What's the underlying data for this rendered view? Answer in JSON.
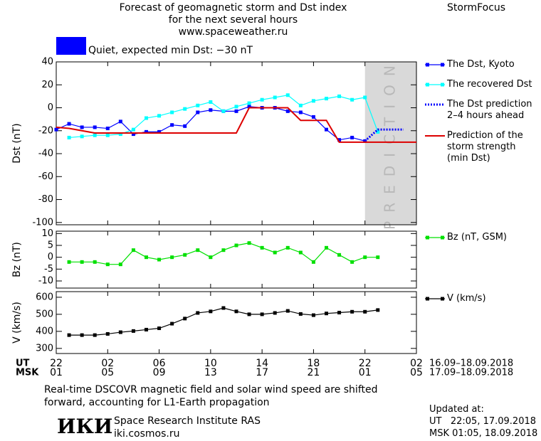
{
  "header": {
    "title": "Forecast of geomagnetic storm and Dst index\nfor the next several hours\nwww.spaceweather.ru",
    "brand": "StormFocus",
    "status_color": "#0000ff",
    "status_text": "Quiet, expected min Dst: −30 nT"
  },
  "chart_data": [
    {
      "type": "line",
      "ylabel": "Dst (nT)",
      "xlim": [
        0,
        28
      ],
      "xticks": [
        0,
        4,
        8,
        12,
        16,
        20,
        24,
        28
      ],
      "ylim": [
        -102,
        40
      ],
      "yticks": [
        40,
        20,
        0,
        -20,
        -40,
        -60,
        -80,
        -100
      ],
      "prediction_band": {
        "label": "PREDICTION",
        "color": "#d9d9d9",
        "xlim": [
          24,
          28
        ]
      },
      "series": [
        {
          "name": "The Dst, Kyoto",
          "color": "#0000ff",
          "marker": true,
          "dash": false,
          "x": [
            0,
            1,
            2,
            3,
            4,
            5,
            6,
            7,
            8,
            9,
            10,
            11,
            12,
            13,
            14,
            15,
            16,
            17,
            18,
            19,
            20,
            21,
            22,
            23,
            24
          ],
          "values": [
            -19,
            -14,
            -17,
            -17,
            -18,
            -12,
            -23,
            -21,
            -21,
            -15,
            -16,
            -4,
            -2,
            -3,
            -3,
            1,
            0,
            0,
            -3,
            -4,
            -8,
            -19,
            -28,
            -26,
            -29
          ]
        },
        {
          "name": "The recovered Dst",
          "color": "#00ffff",
          "marker": true,
          "dash": false,
          "x": [
            1,
            2,
            3,
            4,
            5,
            6,
            7,
            8,
            9,
            10,
            11,
            12,
            13,
            14,
            15,
            16,
            17,
            18,
            19,
            20,
            21,
            22,
            23,
            24,
            25
          ],
          "values": [
            -26,
            -25,
            -24,
            -24,
            -23,
            -19,
            -9,
            -7,
            -4,
            -1,
            2,
            5,
            -3,
            1,
            4,
            7,
            9,
            11,
            2,
            6,
            8,
            10,
            7,
            9,
            -21
          ]
        },
        {
          "name": "The Dst prediction\n2–4 hours ahead",
          "color": "#0000ff",
          "marker": false,
          "dash": true,
          "x": [
            24,
            25,
            26,
            27
          ],
          "values": [
            -29,
            -19,
            -19,
            -19
          ]
        },
        {
          "name": "Prediction of the\nstorm strength\n(min Dst)",
          "color": "#dd0000",
          "marker": false,
          "dash": false,
          "x": [
            0,
            1,
            3,
            14,
            15,
            18,
            19,
            21,
            22,
            28
          ],
          "values": [
            -17,
            -18,
            -22,
            -22,
            0,
            0,
            -11,
            -11,
            -30,
            -30
          ]
        }
      ]
    },
    {
      "type": "line",
      "ylabel": "Bz (nT)",
      "xlim": [
        0,
        28
      ],
      "xticks": [
        0,
        4,
        8,
        12,
        16,
        20,
        24,
        28
      ],
      "ylim": [
        -13,
        11
      ],
      "yticks": [
        10,
        5,
        0,
        -5,
        -10
      ],
      "series": [
        {
          "name": "Bz (nT, GSM)",
          "color": "#00e000",
          "marker": true,
          "dash": false,
          "x": [
            1,
            2,
            3,
            4,
            5,
            6,
            7,
            8,
            9,
            10,
            11,
            12,
            13,
            14,
            15,
            16,
            17,
            18,
            19,
            20,
            21,
            22,
            23,
            24,
            25
          ],
          "values": [
            -2,
            -2,
            -2,
            -3,
            -3,
            3,
            0,
            -1,
            0,
            1,
            3,
            0,
            3,
            5,
            6,
            4,
            2,
            4,
            2,
            -2,
            4,
            1,
            -2,
            0,
            0
          ]
        }
      ]
    },
    {
      "type": "line",
      "ylabel": "V (km/s)",
      "xlim": [
        0,
        28
      ],
      "xticks": [
        {
          "value": 0,
          "label": "22"
        },
        {
          "value": 4,
          "label": "02"
        },
        {
          "value": 8,
          "label": "06"
        },
        {
          "value": 12,
          "label": "10"
        },
        {
          "value": 16,
          "label": "14"
        },
        {
          "value": 20,
          "label": "18"
        },
        {
          "value": 24,
          "label": "22"
        },
        {
          "value": 28,
          "label": "02"
        }
      ],
      "x2ticks": [
        {
          "value": 0,
          "label": "01"
        },
        {
          "value": 4,
          "label": "05"
        },
        {
          "value": 8,
          "label": "09"
        },
        {
          "value": 12,
          "label": "13"
        },
        {
          "value": 16,
          "label": "17"
        },
        {
          "value": 20,
          "label": "21"
        },
        {
          "value": 24,
          "label": "01"
        },
        {
          "value": 28,
          "label": "05"
        }
      ],
      "xlabel": "UT",
      "x2label": "MSK",
      "xdates": "16.09–18.09.2018",
      "x2dates": "17.09–18.09.2018",
      "ylim": [
        270,
        633
      ],
      "yticks": [
        600,
        500,
        400,
        300
      ],
      "series": [
        {
          "name": "V (km/s)",
          "color": "#000000",
          "marker": true,
          "dash": false,
          "x": [
            1,
            2,
            3,
            4,
            5,
            6,
            7,
            8,
            9,
            10,
            11,
            12,
            13,
            14,
            15,
            16,
            17,
            18,
            19,
            20,
            21,
            22,
            23,
            24,
            25
          ],
          "values": [
            378,
            378,
            378,
            385,
            395,
            402,
            410,
            418,
            445,
            475,
            508,
            517,
            537,
            517,
            500,
            500,
            508,
            520,
            502,
            495,
            505,
            510,
            515,
            515,
            525
          ]
        }
      ]
    }
  ],
  "footer": {
    "note": "Real-time DSCOVR magnetic field and solar wind speed are shifted\nforward, accounting for L1-Earth propagation",
    "logo": "ИКИ",
    "institute": "Space Research Institute RAS",
    "site": "iki.cosmos.ru",
    "updated_title": "Updated at:",
    "updated_ut": "UT   22:05, 17.09.2018",
    "updated_msk": "MSK 01:05, 18.09.2018"
  }
}
